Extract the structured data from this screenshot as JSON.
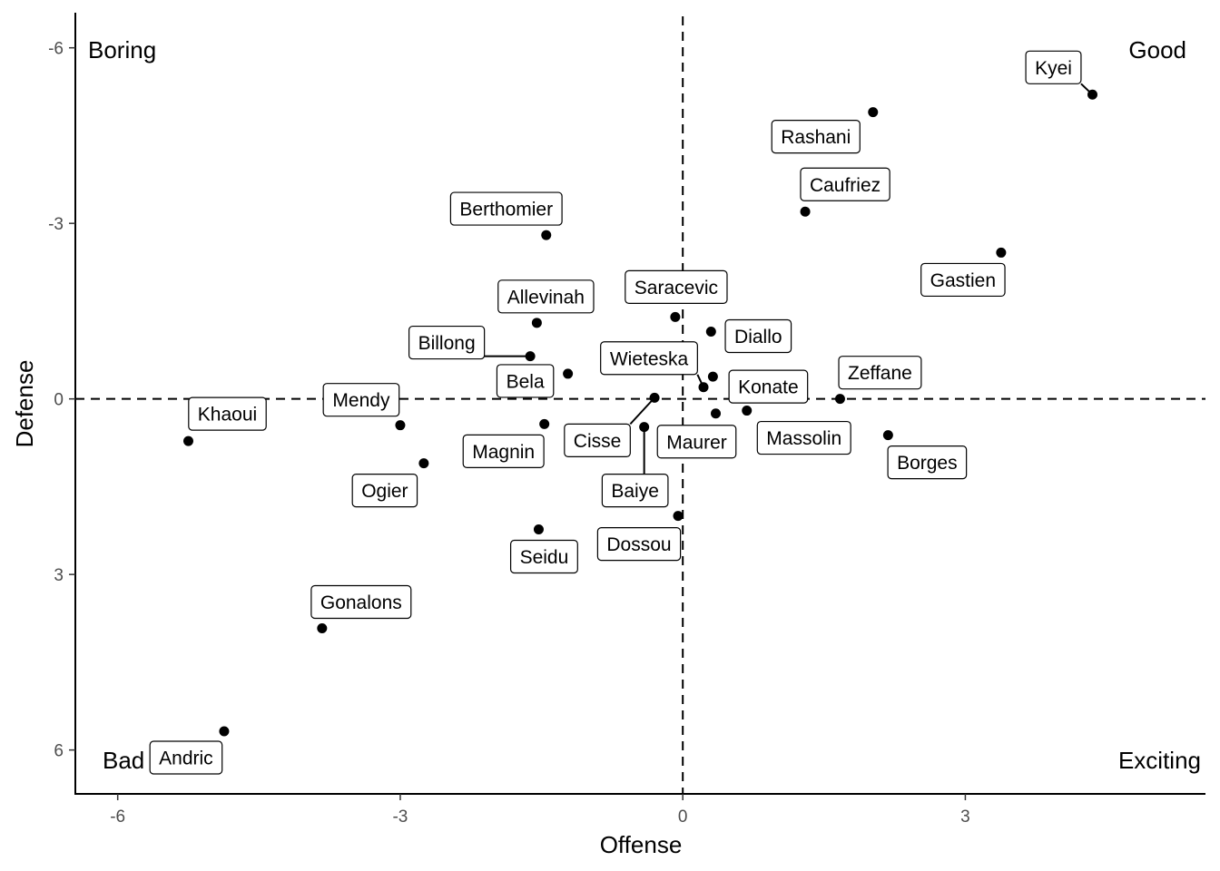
{
  "chart_data": {
    "type": "scatter",
    "xlabel": "Offense",
    "ylabel": "Defense",
    "xlim": [
      -6.45,
      5.55
    ],
    "ylim": [
      -6.6,
      6.75
    ],
    "y_reversed": true,
    "x_ticks": [
      -6,
      -3,
      0,
      3
    ],
    "y_ticks": [
      -6,
      -3,
      0,
      3,
      6
    ],
    "x_tick_labels": [
      "-6",
      "-3",
      "0",
      "3"
    ],
    "y_tick_labels": [
      "-6",
      "-3",
      "0",
      "3",
      "6"
    ],
    "reference_lines": {
      "x": 0,
      "y": 0
    },
    "quadrant_labels": {
      "top_left": "Boring",
      "top_right": "Good",
      "bottom_left": "Bad",
      "bottom_right": "Exciting"
    },
    "grid": false,
    "points": [
      {
        "name": "Kyei",
        "x": 4.35,
        "y": -5.2
      },
      {
        "name": "Rashani",
        "x": 2.02,
        "y": -4.9
      },
      {
        "name": "Caufriez",
        "x": 1.3,
        "y": -3.2
      },
      {
        "name": "Gastien",
        "x": 3.38,
        "y": -2.5
      },
      {
        "name": "Berthomier",
        "x": -1.45,
        "y": -2.8
      },
      {
        "name": "Saracevic",
        "x": -0.08,
        "y": -1.4
      },
      {
        "name": "Allevinah",
        "x": -1.55,
        "y": -1.3
      },
      {
        "name": "Diallo",
        "x": 0.3,
        "y": -1.15
      },
      {
        "name": "Billong",
        "x": -1.62,
        "y": -0.73
      },
      {
        "name": "Wieteska",
        "x": 0.22,
        "y": -0.2
      },
      {
        "name": "Bela",
        "x": -1.22,
        "y": -0.43
      },
      {
        "name": "Konate",
        "x": 0.32,
        "y": -0.38
      },
      {
        "name": "Zeffane",
        "x": 1.67,
        "y": 0
      },
      {
        "name": "Mendy",
        "x": -3.0,
        "y": 0.45
      },
      {
        "name": "Khaoui",
        "x": -5.25,
        "y": 0.72
      },
      {
        "name": "Cisse",
        "x": -0.3,
        "y": -0.02
      },
      {
        "name": "Maurer",
        "x": 0.35,
        "y": 0.25
      },
      {
        "name": "Massolin",
        "x": 0.68,
        "y": 0.2
      },
      {
        "name": "Magnin",
        "x": -1.47,
        "y": 0.43
      },
      {
        "name": "Borges",
        "x": 2.18,
        "y": 0.62
      },
      {
        "name": "Baiye",
        "x": -0.41,
        "y": 0.48
      },
      {
        "name": "Ogier",
        "x": -2.75,
        "y": 1.1
      },
      {
        "name": "Dossou",
        "x": -0.05,
        "y": 2.0
      },
      {
        "name": "Seidu",
        "x": -1.53,
        "y": 2.23
      },
      {
        "name": "Gonalons",
        "x": -3.83,
        "y": 3.92
      },
      {
        "name": "Andric",
        "x": -4.87,
        "y": 5.68
      }
    ]
  }
}
